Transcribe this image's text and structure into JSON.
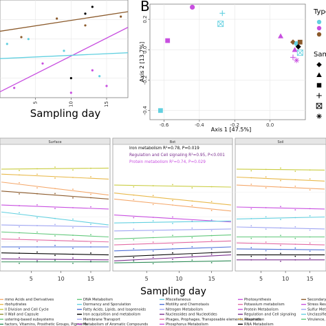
{
  "panel_b_label": "B",
  "chart_data": [
    {
      "id": "A-partial",
      "type": "scatter",
      "xlabel": "Sampling day",
      "ylabel": "",
      "xticks": [
        "5",
        "10",
        "15"
      ],
      "xlim": [
        0,
        18
      ],
      "ylim": [
        0,
        1
      ],
      "grid": true,
      "series": [
        {
          "color": "#8B5A2B",
          "x": [
            3,
            8,
            12,
            17
          ],
          "y": [
            0.62,
            0.81,
            0.74,
            0.83
          ],
          "fit": [
            [
              0,
              0.68
            ],
            [
              18,
              0.88
            ]
          ]
        },
        {
          "color": "#C84FE0",
          "x": [
            2,
            6,
            10,
            13,
            15
          ],
          "y": [
            0.1,
            0.35,
            0.05,
            0.28,
            0.12
          ],
          "fit": [
            [
              0,
              0.06
            ],
            [
              18,
              0.72
            ]
          ]
        },
        {
          "color": "#62D0E0",
          "x": [
            1,
            4,
            9,
            14
          ],
          "y": [
            0.55,
            0.6,
            0.48,
            0.22
          ],
          "fit": [
            [
              0,
              0.4
            ],
            [
              18,
              0.46
            ]
          ]
        }
      ],
      "extra_points": [
        {
          "x": 12,
          "y": 0.86,
          "color": "#000000"
        },
        {
          "x": 13,
          "y": 0.93,
          "color": "#000000"
        },
        {
          "x": 10,
          "y": 0.2,
          "color": "#000000"
        }
      ]
    },
    {
      "id": "B",
      "type": "scatter",
      "xlabel": "Axis 1  [47.5%]",
      "ylabel": "Axis 2  [13.7%]",
      "xticks": [
        "-0.6",
        "-0.4",
        "-0.2",
        "0.0"
      ],
      "yticks": [
        "0.2",
        "0.0",
        "-0.2",
        "-0.4"
      ],
      "xlim": [
        -0.68,
        0.2
      ],
      "ylim": [
        -0.46,
        0.3
      ],
      "grid": true,
      "legend_fragments": [
        "Type",
        "Sam"
      ],
      "legend_type_colors": [
        "#62D0E0",
        "#C84FE0",
        "#8B5A2B"
      ],
      "legend_shapes": [
        "diamond",
        "triangle",
        "square",
        "plus",
        "boxx",
        "star"
      ],
      "points": [
        {
          "x": -0.44,
          "y": 0.28,
          "color": "#C84FE0",
          "shape": "circle"
        },
        {
          "x": -0.58,
          "y": 0.06,
          "color": "#C84FE0",
          "shape": "square"
        },
        {
          "x": -0.62,
          "y": -0.4,
          "color": "#62D0E0",
          "shape": "square"
        },
        {
          "x": -0.27,
          "y": 0.24,
          "color": "#62D0E0",
          "shape": "plus"
        },
        {
          "x": -0.28,
          "y": 0.17,
          "color": "#62D0E0",
          "shape": "boxx"
        },
        {
          "x": 0.06,
          "y": 0.09,
          "color": "#C84FE0",
          "shape": "triangle"
        },
        {
          "x": 0.13,
          "y": 0.05,
          "color": "#8B5A2B",
          "shape": "diamond"
        },
        {
          "x": 0.15,
          "y": 0.04,
          "color": "#62D0E0",
          "shape": "circle"
        },
        {
          "x": 0.16,
          "y": 0.02,
          "color": "#000000",
          "shape": "diamond"
        },
        {
          "x": 0.14,
          "y": 0.0,
          "color": "#C84FE0",
          "shape": "triangle"
        },
        {
          "x": 0.17,
          "y": -0.02,
          "color": "#62D0E0",
          "shape": "boxx"
        },
        {
          "x": 0.13,
          "y": -0.05,
          "color": "#C84FE0",
          "shape": "plus"
        },
        {
          "x": 0.15,
          "y": -0.07,
          "color": "#C84FE0",
          "shape": "star"
        },
        {
          "x": 0.17,
          "y": 0.05,
          "color": "#8B5A2B",
          "shape": "square"
        }
      ]
    },
    {
      "id": "C",
      "type": "line",
      "xlabel": "Sampling day",
      "xticks": [
        "5",
        "10",
        "15"
      ],
      "xlim": [
        0,
        18
      ],
      "ylim": [
        0,
        1
      ],
      "panels": [
        {
          "title": "Surface",
          "annotations": [],
          "lines": [
            {
              "color": "#C9CC3F",
              "y0": 0.98,
              "y1": 0.99
            },
            {
              "color": "#E8B84A",
              "y0": 0.93,
              "y1": 0.88
            },
            {
              "color": "#F4A86B",
              "y0": 0.85,
              "y1": 0.72
            },
            {
              "color": "#8B5A2B",
              "y0": 0.76,
              "y1": 0.68
            },
            {
              "color": "#C84FE0",
              "y0": 0.62,
              "y1": 0.58
            },
            {
              "color": "#62D0E0",
              "y0": 0.55,
              "y1": 0.42
            },
            {
              "color": "#9FA5F2",
              "y0": 0.42,
              "y1": 0.4
            },
            {
              "color": "#60C77A",
              "y0": 0.35,
              "y1": 0.3
            },
            {
              "color": "#E26BA3",
              "y0": 0.28,
              "y1": 0.25
            },
            {
              "color": "#4C6FD8",
              "y0": 0.2,
              "y1": 0.2
            },
            {
              "color": "#000000",
              "y0": 0.14,
              "y1": 0.12
            },
            {
              "color": "#7A2E8E",
              "y0": 0.08,
              "y1": 0.07
            },
            {
              "color": "#2E8B57",
              "y0": 0.05,
              "y1": 0.05
            }
          ]
        },
        {
          "title": "Bot",
          "annotations": [
            {
              "text": "Iron metabolism R²=0.78, P=0.019",
              "color": "#000000"
            },
            {
              "text": "Regulation and Cell signaling R²=0.95, P<0.001",
              "color": "#7A2E8E"
            },
            {
              "text": "Protein metabolism R²=0.74, P=0.029",
              "color": "#C84FE0"
            }
          ],
          "lines": [
            {
              "color": "#C9CC3F",
              "y0": 0.82,
              "y1": 0.8
            },
            {
              "color": "#E8B84A",
              "y0": 0.74,
              "y1": 0.62
            },
            {
              "color": "#F4A86B",
              "y0": 0.68,
              "y1": 0.56
            },
            {
              "color": "#C84FE0",
              "y0": 0.52,
              "y1": 0.45
            },
            {
              "color": "#62D0E0",
              "y0": 0.44,
              "y1": 0.46
            },
            {
              "color": "#9FA5F2",
              "y0": 0.36,
              "y1": 0.38
            },
            {
              "color": "#60C77A",
              "y0": 0.28,
              "y1": 0.32
            },
            {
              "color": "#E26BA3",
              "y0": 0.22,
              "y1": 0.26
            },
            {
              "color": "#4C6FD8",
              "y0": 0.16,
              "y1": 0.2
            },
            {
              "color": "#000000",
              "y0": 0.1,
              "y1": 0.15
            },
            {
              "color": "#7A2E8E",
              "y0": 0.06,
              "y1": 0.12
            },
            {
              "color": "#2E8B57",
              "y0": 0.04,
              "y1": 0.06
            }
          ]
        },
        {
          "title": "Soil",
          "annotations": [],
          "lines": [
            {
              "color": "#C9CC3F",
              "y0": 0.98,
              "y1": 0.97
            },
            {
              "color": "#E8B84A",
              "y0": 0.9,
              "y1": 0.86
            },
            {
              "color": "#F4A86B",
              "y0": 0.82,
              "y1": 0.78
            },
            {
              "color": "#C84FE0",
              "y0": 0.6,
              "y1": 0.58
            },
            {
              "color": "#62D0E0",
              "y0": 0.48,
              "y1": 0.5
            },
            {
              "color": "#9FA5F2",
              "y0": 0.4,
              "y1": 0.38
            },
            {
              "color": "#60C77A",
              "y0": 0.3,
              "y1": 0.3
            },
            {
              "color": "#E26BA3",
              "y0": 0.24,
              "y1": 0.22
            },
            {
              "color": "#4C6FD8",
              "y0": 0.18,
              "y1": 0.17
            },
            {
              "color": "#000000",
              "y0": 0.12,
              "y1": 0.12
            },
            {
              "color": "#7A2E8E",
              "y0": 0.07,
              "y1": 0.07
            }
          ]
        }
      ],
      "legend": [
        [
          {
            "label": "mmo Acids and Derivatives",
            "color": "#F4A86B"
          },
          {
            "label": "rbohydrates",
            "color": "#E8B84A"
          },
          {
            "label": "ll Division and Cell Cycle",
            "color": "#C9CC3F"
          },
          {
            "label": "ll Wall and Capsule",
            "color": "#8B8B2B"
          },
          {
            "label": "ustering-based subsystems",
            "color": "#60C77A"
          },
          {
            "label": "factors, Vitamins, Prosthetic Groups, Pigments",
            "color": "#2E8B57"
          }
        ],
        [
          {
            "label": "DNA Metabolism",
            "color": "#60C77A"
          },
          {
            "label": "Dormancy and Sporulation",
            "color": "#62D0E0"
          },
          {
            "label": "Fatty Acids, Lipids, and Isoprenoids",
            "color": "#4C6FD8"
          },
          {
            "label": "Iron acquisition and metabolism",
            "color": "#000000"
          },
          {
            "label": "Membrane Transport",
            "color": "#9FA5F2"
          },
          {
            "label": "Metabolism of Aromatic Compounds",
            "color": "#C84FE0"
          }
        ],
        [
          {
            "label": "Miscellaneous",
            "color": "#62D0E0"
          },
          {
            "label": "Motility and Chemotaxis",
            "color": "#4C6FD8"
          },
          {
            "label": "Nitrogen Metabolism",
            "color": "#9FA5F2"
          },
          {
            "label": "Nucleosides and Nucleotides",
            "color": "#7A2E8E"
          },
          {
            "label": "Phages, Prophages, Transposable elements, Plasmids",
            "color": "#E26BA3"
          },
          {
            "label": "Phosphorus Metabolism",
            "color": "#C84FE0"
          }
        ],
        [
          {
            "label": "Photosynthesis",
            "color": "#C84FE0"
          },
          {
            "label": "Potassium metabolism",
            "color": "#E26BA3"
          },
          {
            "label": "Protein Metabolism",
            "color": "#C84FE0"
          },
          {
            "label": "Regulation and Cell signaling",
            "color": "#7A2E8E"
          },
          {
            "label": "Respiration",
            "color": "#E8B84A"
          },
          {
            "label": "RNA Metabolism",
            "color": "#000000"
          }
        ],
        [
          {
            "label": "Secondary Meta",
            "color": "#8B5A2B"
          },
          {
            "label": "Stress Respons",
            "color": "#C84FE0"
          },
          {
            "label": "Sulfur Metabolis",
            "color": "#9FA5F2"
          },
          {
            "label": "Unclassified Ce",
            "color": "#62D0E0"
          },
          {
            "label": "Virulence, Dise",
            "color": "#60C77A"
          },
          {
            "label": "",
            "color": "#000000"
          }
        ]
      ]
    }
  ]
}
